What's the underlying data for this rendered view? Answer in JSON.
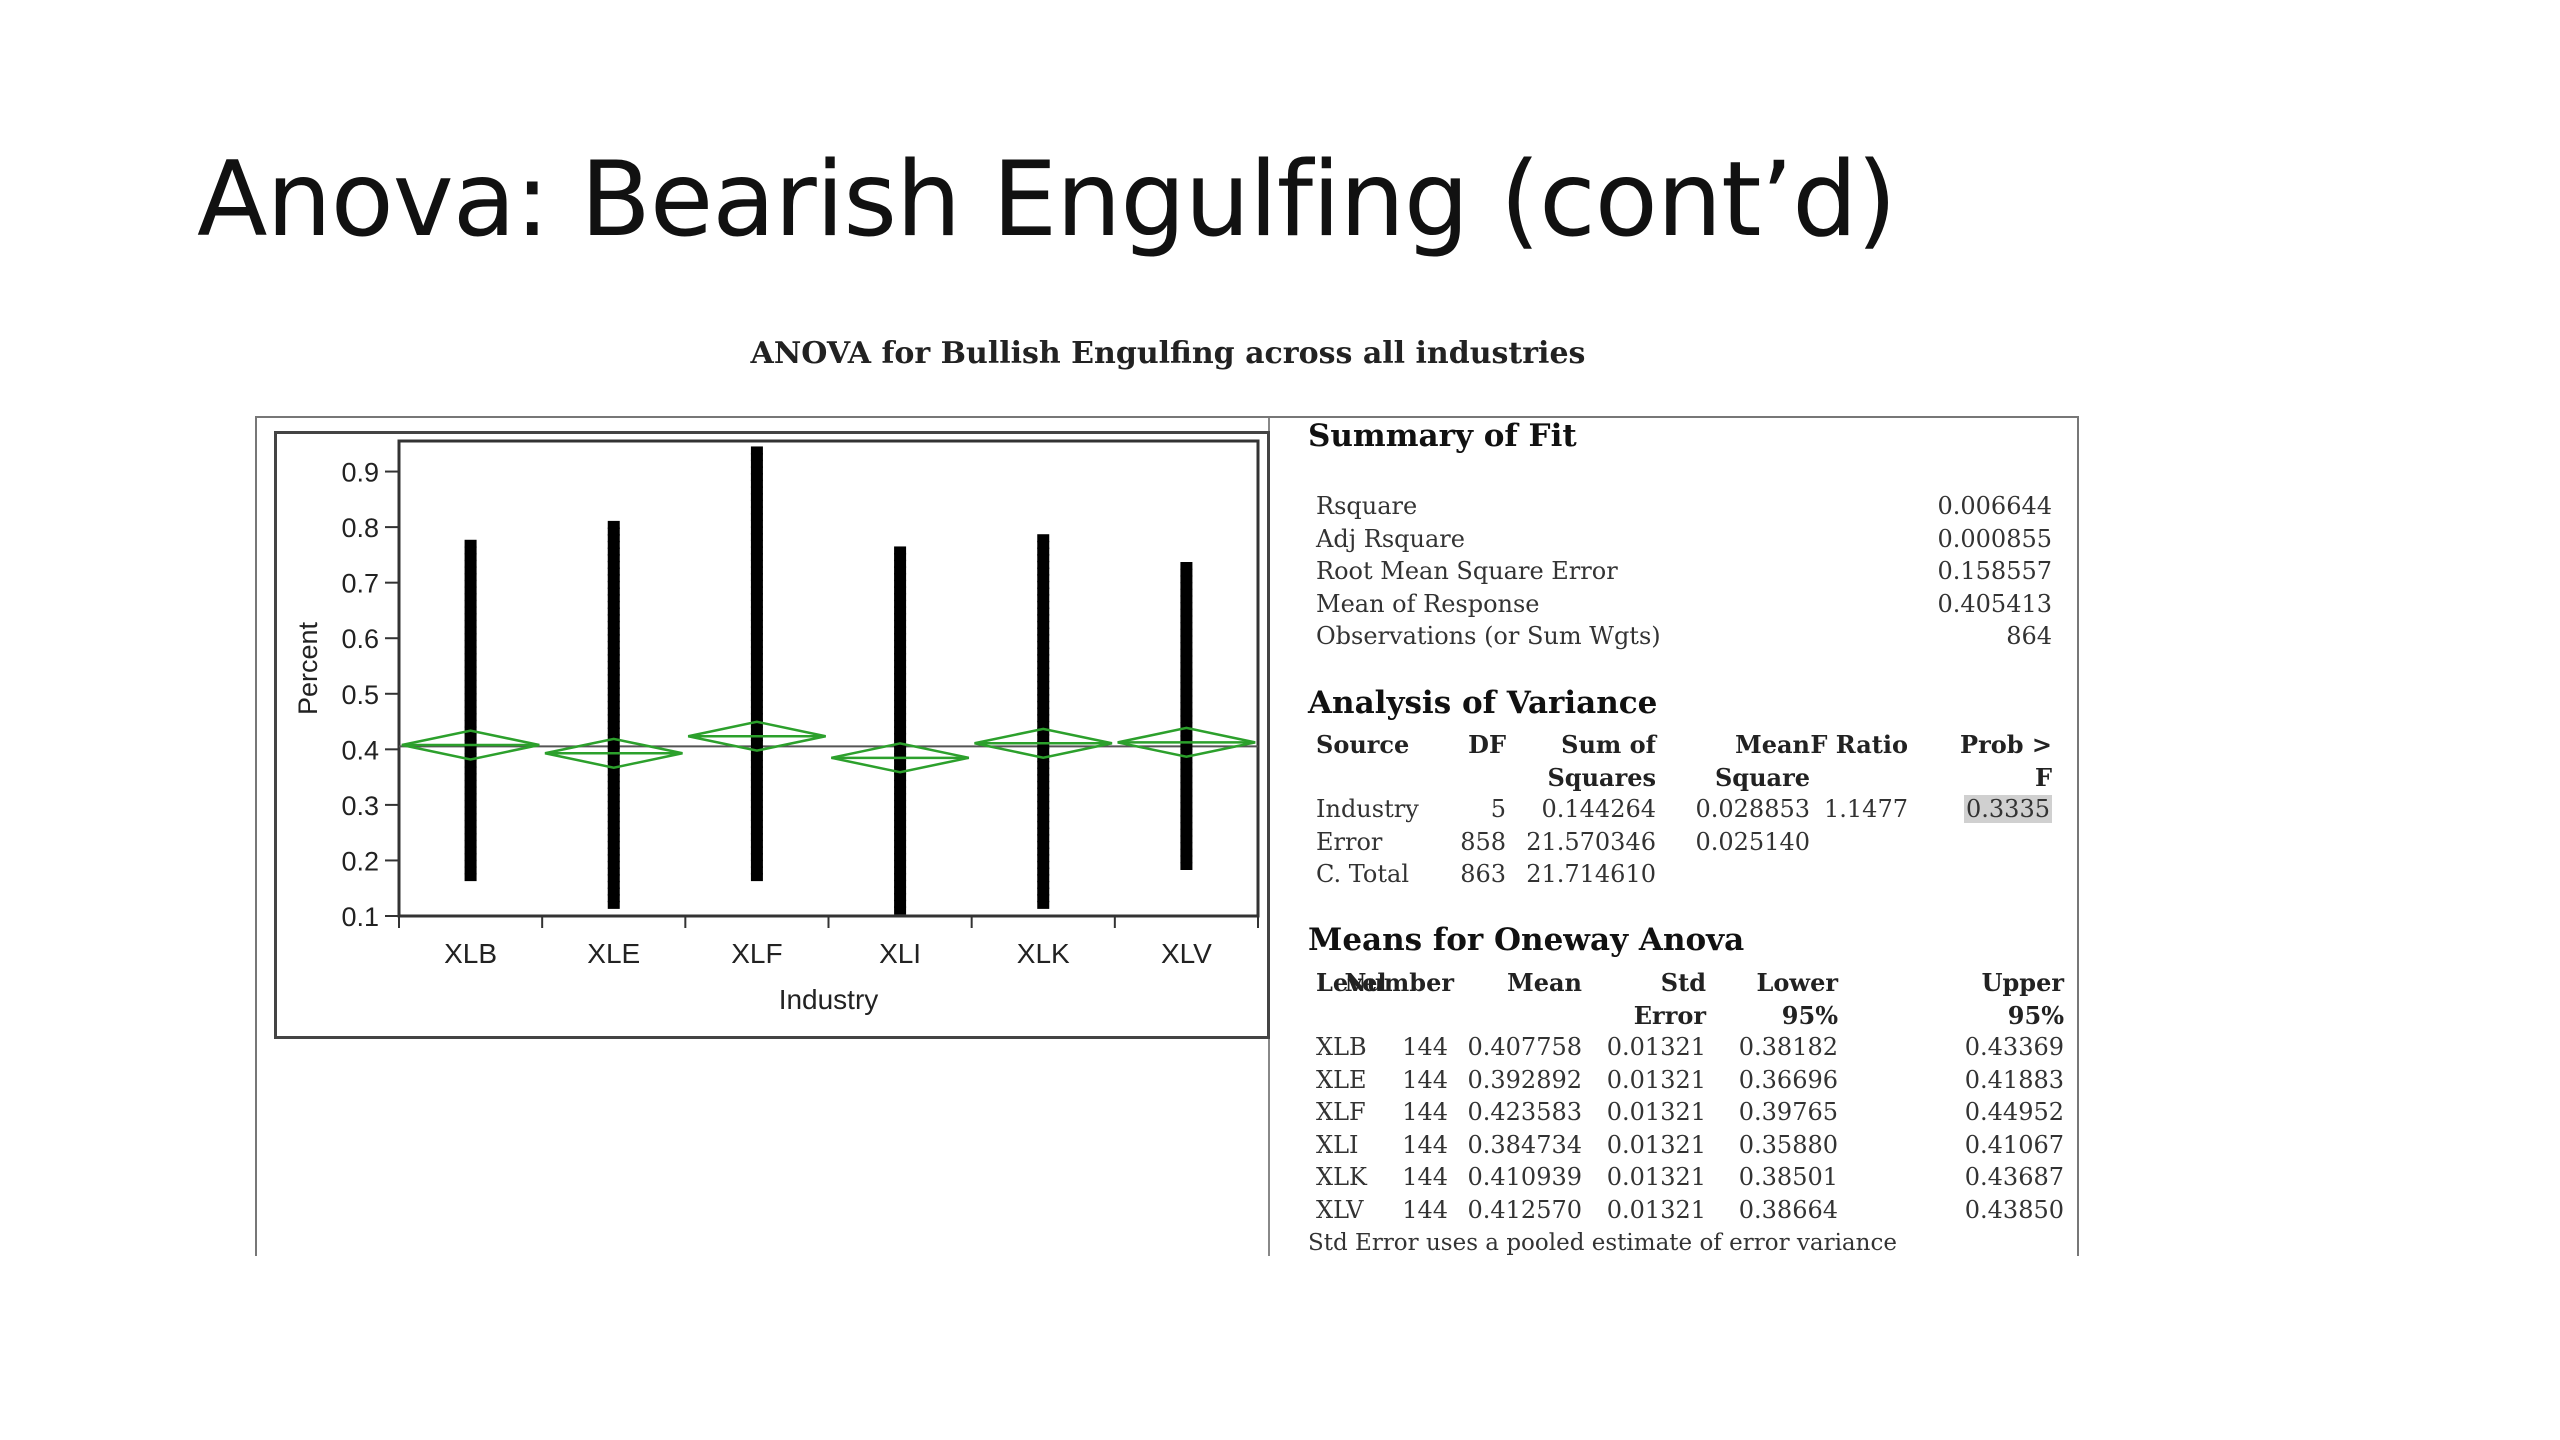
{
  "slide_title": "Anova: Bearish Engulfing (cont’d)",
  "figure_caption": "ANOVA for Bullish Engulfing across all industries",
  "chart_data": {
    "type": "scatter",
    "subtype": "oneway-anova-means-diamonds",
    "xlabel": "Industry",
    "ylabel": "Percent",
    "categories": [
      "XLB",
      "XLE",
      "XLF",
      "XLI",
      "XLK",
      "XLV"
    ],
    "yticks": [
      "0.1",
      "0.2",
      "0.3",
      "0.4",
      "0.5",
      "0.6",
      "0.7",
      "0.8",
      "0.9"
    ],
    "ylim": [
      0.1,
      0.95
    ],
    "grand_mean": 0.405413,
    "group_ranges": [
      [
        0.17,
        0.78
      ],
      [
        0.12,
        0.81
      ],
      [
        0.17,
        0.94
      ],
      [
        0.11,
        0.76
      ],
      [
        0.12,
        0.79
      ],
      [
        0.19,
        0.73
      ]
    ],
    "group_means": [
      0.407758,
      0.392892,
      0.423583,
      0.384734,
      0.410939,
      0.41257
    ],
    "group_ci": [
      [
        0.38182,
        0.43369
      ],
      [
        0.36696,
        0.41883
      ],
      [
        0.39765,
        0.44952
      ],
      [
        0.3588,
        0.41067
      ],
      [
        0.38501,
        0.43687
      ],
      [
        0.38664,
        0.4385
      ]
    ],
    "colors": {
      "points": "#000000",
      "diamond": "#2ca02c",
      "grand_mean_line": "#555555"
    }
  },
  "summary_of_fit": {
    "title": "Summary of Fit",
    "rows": [
      {
        "label": "Rsquare",
        "value": "0.006644"
      },
      {
        "label": "Adj Rsquare",
        "value": "0.000855"
      },
      {
        "label": "Root Mean Square Error",
        "value": "0.158557"
      },
      {
        "label": "Mean of Response",
        "value": "0.405413"
      },
      {
        "label": "Observations (or Sum Wgts)",
        "value": "864"
      }
    ]
  },
  "anova": {
    "title": "Analysis of Variance",
    "header_1": [
      "Source",
      "DF",
      "Sum of",
      "Mean",
      "F Ratio",
      "Prob >"
    ],
    "header_2": [
      "",
      "",
      "Squares",
      "Square",
      "",
      "F"
    ],
    "rows": [
      [
        "Industry",
        "5",
        "0.144264",
        "0.028853",
        "1.1477",
        "0.3335"
      ],
      [
        "Error",
        "858",
        "21.570346",
        "0.025140",
        "",
        ""
      ],
      [
        "C. Total",
        "863",
        "21.714610",
        "",
        "",
        ""
      ]
    ]
  },
  "means": {
    "title": "Means for Oneway Anova",
    "header_1": [
      "Level",
      "Number",
      "Mean",
      "Std",
      "Lower",
      "Upper"
    ],
    "header_2": [
      "",
      "",
      "",
      "Error",
      "95%",
      "95%"
    ],
    "rows": [
      [
        "XLB",
        "144",
        "0.407758",
        "0.01321",
        "0.38182",
        "0.43369"
      ],
      [
        "XLE",
        "144",
        "0.392892",
        "0.01321",
        "0.36696",
        "0.41883"
      ],
      [
        "XLF",
        "144",
        "0.423583",
        "0.01321",
        "0.39765",
        "0.44952"
      ],
      [
        "XLI",
        "144",
        "0.384734",
        "0.01321",
        "0.35880",
        "0.41067"
      ],
      [
        "XLK",
        "144",
        "0.410939",
        "0.01321",
        "0.38501",
        "0.43687"
      ],
      [
        "XLV",
        "144",
        "0.412570",
        "0.01321",
        "0.38664",
        "0.43850"
      ]
    ],
    "footnote": "Std Error uses a pooled estimate of error variance"
  }
}
